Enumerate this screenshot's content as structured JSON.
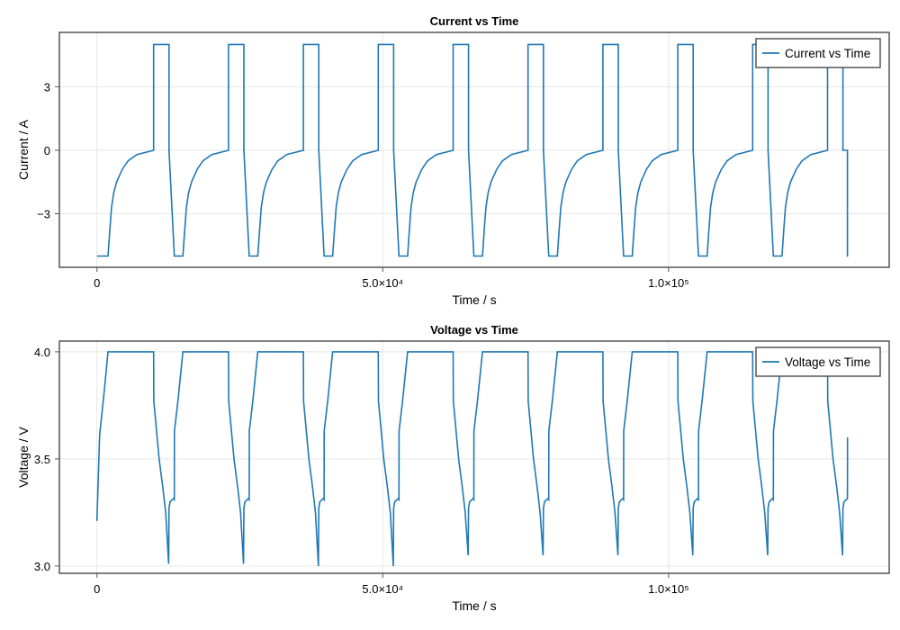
{
  "colors": {
    "line": "#1f78b4",
    "frame": "#555555",
    "grid": "#e6e6e6"
  },
  "chart_data": [
    {
      "type": "line",
      "title": "Current vs Time",
      "xlabel": "Time  /  s",
      "ylabel": "Current  /  A",
      "xlim": [
        -6570,
        138600
      ],
      "ylim": [
        -5.53,
        5.57
      ],
      "xticks": [
        {
          "value": 0,
          "label": "0"
        },
        {
          "value": 50000,
          "label": "5.0×10⁴"
        },
        {
          "value": 100000,
          "label": "1.0×10⁵"
        }
      ],
      "yticks": [
        {
          "value": -3,
          "label": "−3"
        },
        {
          "value": 0,
          "label": "0"
        },
        {
          "value": 3,
          "label": "3"
        }
      ],
      "grid": true,
      "legend": {
        "position": "top-right",
        "entries": [
          "Current vs Time"
        ]
      },
      "series": [
        {
          "name": "Current vs Time",
          "cycle_period_s": 13100,
          "n_cycles": 10,
          "first_cycle_head": [
            [
              0,
              -5
            ]
          ],
          "later_cycle_head": [
            [
              440,
              -5
            ]
          ],
          "cycle_profile": [
            [
              1940,
              -5
            ],
            [
              2240,
              -3.8
            ],
            [
              2540,
              -2.7
            ],
            [
              2940,
              -2.0
            ],
            [
              3440,
              -1.5
            ],
            [
              4440,
              -0.9
            ],
            [
              5440,
              -0.5
            ],
            [
              7000,
              -0.2
            ],
            [
              9920,
              0
            ],
            [
              9920,
              5
            ],
            [
              12600,
              5
            ],
            [
              12600,
              0
            ]
          ],
          "tail": [
            [
              131300,
              0
            ],
            [
              131300,
              -5
            ],
            [
              131400,
              -5
            ]
          ]
        }
      ]
    },
    {
      "type": "line",
      "title": "Voltage vs Time",
      "xlabel": "Time  /  s",
      "ylabel": "Voltage  /  V",
      "xlim": [
        -6570,
        138600
      ],
      "ylim": [
        2.966,
        4.05
      ],
      "xticks": [
        {
          "value": 0,
          "label": "0"
        },
        {
          "value": 50000,
          "label": "5.0×10⁴"
        },
        {
          "value": 100000,
          "label": "1.0×10⁵"
        }
      ],
      "yticks": [
        {
          "value": 3.0,
          "label": "3.0"
        },
        {
          "value": 3.5,
          "label": "3.5"
        },
        {
          "value": 4.0,
          "label": "4.0"
        }
      ],
      "grid": true,
      "legend": {
        "position": "top-right",
        "entries": [
          "Voltage vs Time"
        ]
      },
      "series": [
        {
          "name": "Voltage vs Time",
          "cycle_period_s": 13100,
          "n_cycles": 10,
          "first_cycle_head": [
            [
              0,
              3.21
            ],
            [
              470,
              3.61
            ],
            [
              1260,
              3.81
            ],
            [
              1940,
              4.0
            ]
          ],
          "later_cycle_head": [
            [
              440,
              3.31
            ],
            [
              445,
              3.63
            ],
            [
              1070,
              3.77
            ],
            [
              1940,
              4.0
            ]
          ],
          "cycle_profile": [
            [
              9920,
              4.0
            ],
            [
              9940,
              3.77
            ],
            [
              10870,
              3.5
            ],
            [
              11500,
              3.37
            ],
            [
              12020,
              3.25
            ],
            [
              12540,
              "min"
            ],
            [
              12600,
              3.27
            ],
            [
              12800,
              3.3
            ],
            [
              13400,
              3.315
            ]
          ],
          "cycle_minima": [
            3.01,
            3.01,
            3.0,
            3.0,
            3.05,
            3.05,
            3.05,
            3.05,
            3.05,
            3.05
          ],
          "tail": [
            [
              131300,
              3.32
            ],
            [
              131310,
              3.6
            ]
          ]
        }
      ]
    }
  ]
}
